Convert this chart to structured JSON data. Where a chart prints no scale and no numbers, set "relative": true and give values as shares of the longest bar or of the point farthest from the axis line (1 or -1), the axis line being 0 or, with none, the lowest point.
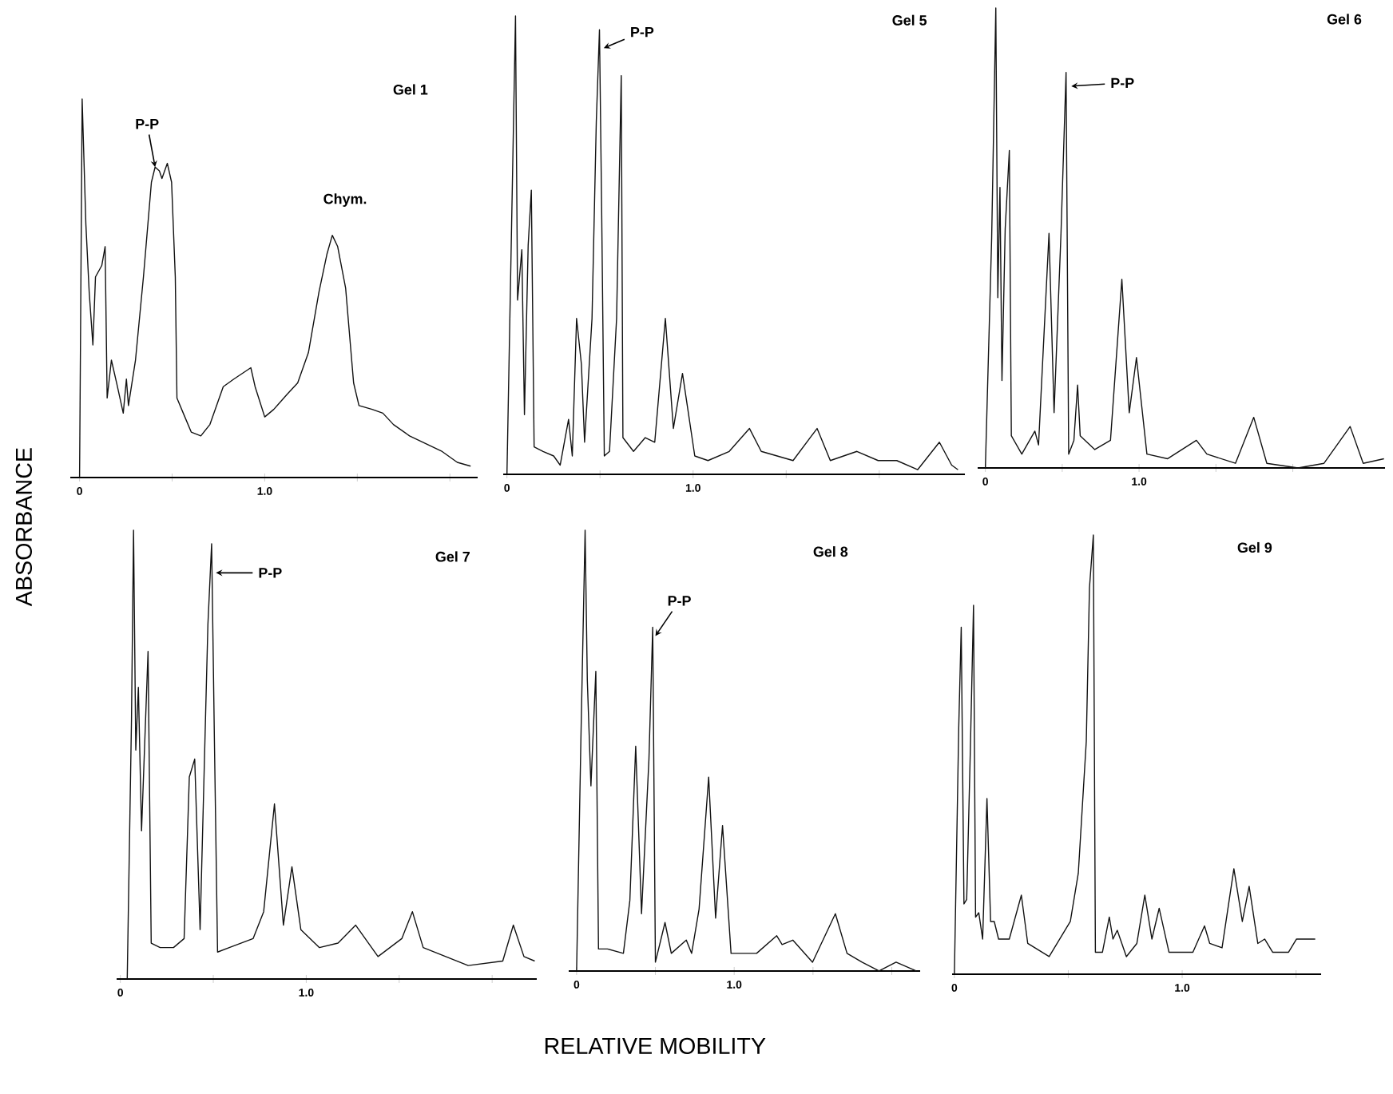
{
  "chart_data": [
    {
      "type": "line",
      "title": "Gel 1",
      "ylabel": "ABSORBANCE",
      "relative": true,
      "color": "#111111",
      "tick_labels": "x",
      "xlim": [
        -0.05,
        2.15
      ],
      "xticks": [
        0,
        {
          "value": 0.5,
          "label": null
        },
        {
          "value": 1,
          "label": "1.0"
        },
        {
          "value": 1.5,
          "label": null
        },
        {
          "value": 2,
          "label": null
        }
      ],
      "annotations": [
        {
          "text": "P-P",
          "x": 0.408,
          "y": 0.82
        },
        {
          "text": "Chym.",
          "x": 1.365,
          "y": 0.64
        }
      ],
      "x": [
        0,
        0.014,
        0.034,
        0.052,
        0.072,
        0.086,
        0.12,
        0.138,
        0.149,
        0.172,
        0.2,
        0.236,
        0.253,
        0.264,
        0.302,
        0.345,
        0.388,
        0.408,
        0.431,
        0.445,
        0.474,
        0.497,
        0.517,
        0.526,
        0.56,
        0.603,
        0.655,
        0.704,
        0.776,
        0.833,
        0.925,
        0.948,
        1.0,
        1.049,
        1.121,
        1.178,
        1.236,
        1.293,
        1.336,
        1.365,
        1.394,
        1.437,
        1.48,
        1.509,
        1.58,
        1.638,
        1.695,
        1.782,
        1.868,
        1.954,
        2.04,
        2.112
      ],
      "values": [
        0,
        1,
        0.67,
        0.49,
        0.35,
        0.53,
        0.56,
        0.61,
        0.21,
        0.31,
        0.25,
        0.17,
        0.26,
        0.19,
        0.31,
        0.53,
        0.78,
        0.82,
        0.81,
        0.79,
        0.83,
        0.78,
        0.53,
        0.21,
        0.17,
        0.12,
        0.11,
        0.14,
        0.24,
        0.26,
        0.29,
        0.24,
        0.16,
        0.18,
        0.22,
        0.25,
        0.33,
        0.49,
        0.59,
        0.64,
        0.61,
        0.5,
        0.25,
        0.19,
        0.18,
        0.17,
        0.14,
        0.11,
        0.09,
        0.07,
        0.04,
        0.03
      ]
    },
    {
      "type": "line",
      "title": "Gel 5",
      "relative": true,
      "color": "#111111",
      "tick_labels": "x",
      "xlim": [
        -0.02,
        2.46
      ],
      "xticks": [
        0,
        {
          "value": 0.5,
          "label": null
        },
        {
          "value": 1,
          "label": "1.0"
        },
        {
          "value": 1.5,
          "label": null
        },
        {
          "value": 2,
          "label": null
        }
      ],
      "annotations": [
        {
          "text": "P-P",
          "x": 0.52,
          "y": 0.93
        }
      ],
      "x": [
        0,
        0.046,
        0.057,
        0.08,
        0.094,
        0.114,
        0.131,
        0.146,
        0.194,
        0.251,
        0.286,
        0.331,
        0.351,
        0.374,
        0.4,
        0.417,
        0.457,
        0.48,
        0.497,
        0.509,
        0.523,
        0.551,
        0.589,
        0.614,
        0.623,
        0.68,
        0.743,
        0.794,
        0.851,
        0.894,
        0.943,
        1.009,
        1.08,
        1.194,
        1.303,
        1.366,
        1.537,
        1.666,
        1.737,
        1.88,
        1.994,
        2.094,
        2.206,
        2.323,
        2.389,
        2.423
      ],
      "values": [
        0,
        1,
        0.38,
        0.49,
        0.13,
        0.5,
        0.62,
        0.06,
        0.05,
        0.04,
        0.02,
        0.12,
        0.04,
        0.34,
        0.24,
        0.07,
        0.34,
        0.77,
        0.97,
        0.57,
        0.04,
        0.05,
        0.34,
        0.87,
        0.08,
        0.05,
        0.08,
        0.07,
        0.34,
        0.1,
        0.22,
        0.04,
        0.03,
        0.05,
        0.1,
        0.05,
        0.03,
        0.1,
        0.03,
        0.05,
        0.03,
        0.03,
        0.01,
        0.07,
        0.02,
        0.01
      ]
    },
    {
      "type": "line",
      "title": "Gel 6",
      "relative": true,
      "color": "#111111",
      "tick_labels": "x",
      "xlim": [
        -0.05,
        2.6
      ],
      "xticks": [
        0,
        {
          "value": 0.5,
          "label": null
        },
        {
          "value": 1,
          "label": "1.0"
        },
        {
          "value": 1.5,
          "label": null
        },
        {
          "value": 2,
          "label": null
        }
      ],
      "annotations": [
        {
          "text": "P-P",
          "x": 0.559,
          "y": 0.83
        }
      ],
      "x": [
        0,
        0.041,
        0.068,
        0.081,
        0.095,
        0.108,
        0.129,
        0.156,
        0.169,
        0.237,
        0.322,
        0.346,
        0.414,
        0.447,
        0.492,
        0.525,
        0.542,
        0.576,
        0.6,
        0.617,
        0.712,
        0.814,
        0.888,
        0.936,
        0.983,
        1.051,
        1.186,
        1.373,
        1.441,
        1.627,
        1.746,
        1.831,
        2.034,
        2.203,
        2.373,
        2.458,
        2.593
      ],
      "values": [
        0,
        0.5,
        1,
        0.37,
        0.61,
        0.19,
        0.52,
        0.69,
        0.07,
        0.03,
        0.08,
        0.05,
        0.51,
        0.12,
        0.51,
        0.86,
        0.03,
        0.06,
        0.18,
        0.07,
        0.04,
        0.06,
        0.41,
        0.12,
        0.24,
        0.03,
        0.02,
        0.06,
        0.03,
        0.01,
        0.11,
        0.01,
        0,
        0.01,
        0.09,
        0.01,
        0.02
      ]
    },
    {
      "type": "line",
      "title": "Gel 7",
      "relative": true,
      "color": "#111111",
      "tick_labels": "x",
      "xlim": [
        -0.02,
        2.24
      ],
      "xticks": [
        0,
        {
          "value": 0.5,
          "label": null
        },
        {
          "value": 1,
          "label": "1.0"
        },
        {
          "value": 1.5,
          "label": null
        },
        {
          "value": 2,
          "label": null
        }
      ],
      "annotations": [
        {
          "text": "P-P",
          "x": 0.514,
          "y": 0.905
        }
      ],
      "x": [
        0.037,
        0.06,
        0.071,
        0.083,
        0.097,
        0.114,
        0.149,
        0.166,
        0.214,
        0.286,
        0.343,
        0.371,
        0.4,
        0.429,
        0.471,
        0.491,
        0.506,
        0.523,
        0.586,
        0.714,
        0.771,
        0.829,
        0.877,
        0.923,
        0.971,
        1.071,
        1.171,
        1.266,
        1.386,
        1.514,
        1.571,
        1.629,
        1.871,
        2.057,
        2.114,
        2.171,
        2.229
      ],
      "values": [
        0,
        0.58,
        1,
        0.51,
        0.65,
        0.33,
        0.73,
        0.08,
        0.07,
        0.07,
        0.09,
        0.45,
        0.49,
        0.11,
        0.79,
        0.97,
        0.53,
        0.06,
        0.07,
        0.09,
        0.15,
        0.39,
        0.12,
        0.25,
        0.11,
        0.07,
        0.08,
        0.12,
        0.05,
        0.09,
        0.15,
        0.07,
        0.03,
        0.04,
        0.12,
        0.05,
        0.04
      ]
    },
    {
      "type": "line",
      "title": "Gel 8",
      "xlabel": "RELATIVE MOBILITY",
      "relative": true,
      "color": "#111111",
      "tick_labels": "x",
      "xlim": [
        -0.05,
        2.18
      ],
      "xticks": [
        0,
        {
          "value": 0.5,
          "label": null
        },
        {
          "value": 1,
          "label": "1.0"
        },
        {
          "value": 1.5,
          "label": null
        },
        {
          "value": 2,
          "label": null
        }
      ],
      "annotations": [
        {
          "text": "P-P",
          "x": 0.5,
          "y": 0.76
        }
      ],
      "x": [
        0,
        0.027,
        0.054,
        0.068,
        0.091,
        0.122,
        0.139,
        0.196,
        0.297,
        0.338,
        0.375,
        0.412,
        0.459,
        0.483,
        0.5,
        0.561,
        0.601,
        0.696,
        0.73,
        0.777,
        0.838,
        0.882,
        0.926,
        0.98,
        1.142,
        1.27,
        1.304,
        1.372,
        1.497,
        1.642,
        1.716,
        1.811,
        1.919,
        2.027,
        2.155
      ],
      "values": [
        0,
        0.52,
        1,
        0.66,
        0.42,
        0.68,
        0.05,
        0.05,
        0.04,
        0.16,
        0.51,
        0.13,
        0.48,
        0.78,
        0.02,
        0.11,
        0.04,
        0.07,
        0.04,
        0.14,
        0.44,
        0.12,
        0.33,
        0.04,
        0.04,
        0.08,
        0.06,
        0.07,
        0.02,
        0.13,
        0.04,
        0.02,
        0,
        0.02,
        0
      ]
    },
    {
      "type": "line",
      "title": "Gel 9",
      "relative": true,
      "color": "#111111",
      "tick_labels": "x",
      "xlim": [
        -0.01,
        1.61
      ],
      "xticks": [
        0,
        {
          "value": 0.5,
          "label": null
        },
        {
          "value": 1,
          "label": "1.0"
        },
        {
          "value": 1.5,
          "label": null
        }
      ],
      "x": [
        0,
        0.019,
        0.03,
        0.042,
        0.054,
        0.07,
        0.084,
        0.093,
        0.107,
        0.124,
        0.143,
        0.159,
        0.175,
        0.194,
        0.241,
        0.294,
        0.322,
        0.416,
        0.509,
        0.544,
        0.579,
        0.593,
        0.61,
        0.619,
        0.65,
        0.68,
        0.696,
        0.715,
        0.755,
        0.801,
        0.836,
        0.867,
        0.899,
        0.942,
        1.047,
        1.098,
        1.121,
        1.175,
        1.227,
        1.264,
        1.294,
        1.332,
        1.362,
        1.397,
        1.467,
        1.502,
        1.584
      ],
      "values": [
        0,
        0.56,
        0.79,
        0.16,
        0.17,
        0.51,
        0.84,
        0.13,
        0.14,
        0.08,
        0.4,
        0.12,
        0.12,
        0.08,
        0.08,
        0.18,
        0.07,
        0.04,
        0.12,
        0.23,
        0.53,
        0.88,
        1,
        0.05,
        0.05,
        0.13,
        0.08,
        0.1,
        0.04,
        0.07,
        0.18,
        0.08,
        0.15,
        0.05,
        0.05,
        0.11,
        0.07,
        0.06,
        0.24,
        0.12,
        0.2,
        0.07,
        0.08,
        0.05,
        0.05,
        0.08,
        0.08
      ]
    }
  ]
}
